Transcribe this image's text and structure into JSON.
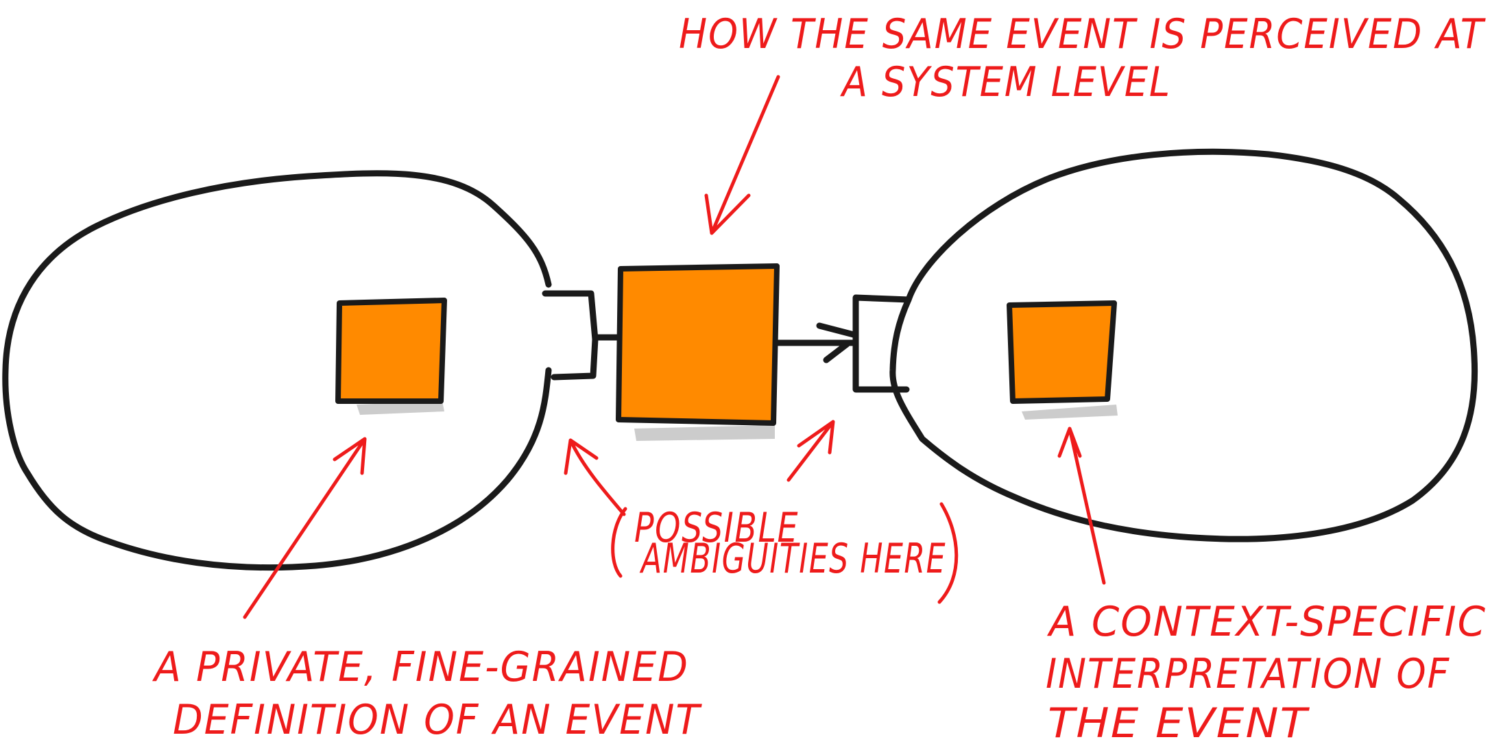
{
  "annotations": {
    "system_level": {
      "line1": "HOW THE SAME EVENT IS PERCEIVED AT",
      "line2": "A SYSTEM LEVEL"
    },
    "possible_ambiguities": {
      "line1": "POSSIBLE",
      "line2": "AMBIGUITIES HERE"
    },
    "private_definition": {
      "line1": "A PRIVATE, FINE-GRAINED",
      "line2": "DEFINITION OF AN EVENT"
    },
    "context_specific": {
      "line1": "A CONTEXT-SPECIFIC",
      "line2": "INTERPRETATION OF",
      "line3": "THE EVENT"
    }
  },
  "colors": {
    "event_fill": "#ff8a00",
    "outline": "#1a1a1a",
    "annotation": "#ee1b1b",
    "shadow": "#cccccc"
  }
}
